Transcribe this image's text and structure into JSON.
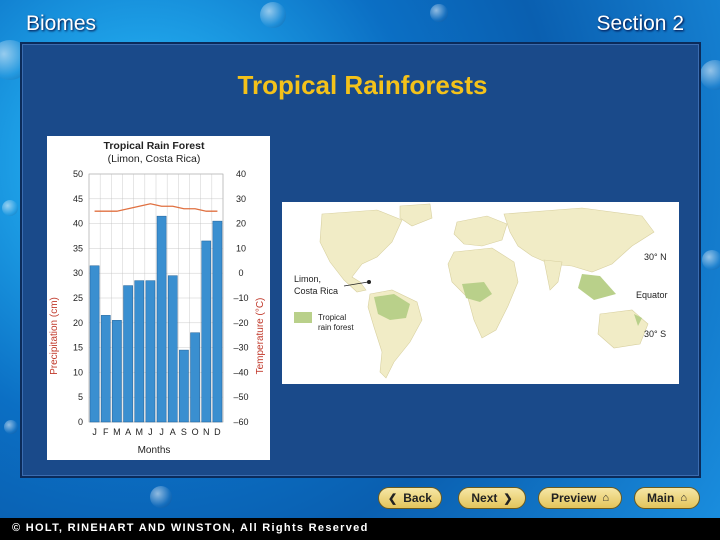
{
  "header": {
    "left": "Biomes",
    "right": "Section 2"
  },
  "slide": {
    "title": "Tropical Rainforests"
  },
  "chart": {
    "title_line1": "Tropical Rain Forest",
    "title_line2": "(Limon, Costa Rica)",
    "ylabel_left": "Precipitation (cm)",
    "ylabel_right": "Temperature (°C)",
    "xlabel": "Months",
    "left_ticks": [
      "50",
      "45",
      "40",
      "35",
      "30",
      "25",
      "20",
      "15",
      "10",
      "5",
      "0"
    ],
    "right_ticks": [
      "40",
      "30",
      "20",
      "10",
      "0",
      "–10",
      "–20",
      "–30",
      "–40",
      "–50",
      "–60"
    ],
    "colors": {
      "bar": "#3a8fd0",
      "line": "#e07040",
      "grid": "#bfbfbf"
    }
  },
  "chart_data": {
    "type": "bar",
    "title": "Tropical Rain Forest",
    "subtitle": "(Limon, Costa Rica)",
    "categories": [
      "J",
      "F",
      "M",
      "A",
      "M",
      "J",
      "J",
      "A",
      "S",
      "O",
      "N",
      "D"
    ],
    "series": [
      {
        "name": "Precipitation (cm)",
        "type": "bar",
        "axis": "left",
        "values": [
          31.5,
          21.5,
          20.5,
          27.5,
          28.5,
          28.5,
          41.5,
          29.5,
          14.5,
          18.0,
          36.5,
          40.5
        ]
      },
      {
        "name": "Temperature (°C)",
        "type": "line",
        "axis": "right",
        "values": [
          25,
          25,
          25,
          26,
          27,
          28,
          27,
          27,
          26,
          26,
          25,
          25
        ]
      }
    ],
    "xlabel": "Months",
    "ylabel": "Precipitation (cm)",
    "ylabel_right": "Temperature (°C)",
    "ylim": [
      0,
      50
    ],
    "ylim_right": [
      -60,
      40
    ],
    "grid": true
  },
  "map": {
    "location_label_1": "Limon,",
    "location_label_2": "Costa Rica",
    "lat_north": "30° N",
    "equator": "Equator",
    "lat_south": "30° S",
    "legend_label_1": "Tropical",
    "legend_label_2": "rain forest",
    "colors": {
      "land": "#f1ecc6",
      "forest": "#b9d08a",
      "ocean": "#ffffff"
    }
  },
  "nav": {
    "back": "Back",
    "next": "Next",
    "preview": "Preview",
    "main": "Main"
  },
  "footer": {
    "text": "© HOLT, RINEHART AND WINSTON, All Rights Reserved"
  }
}
